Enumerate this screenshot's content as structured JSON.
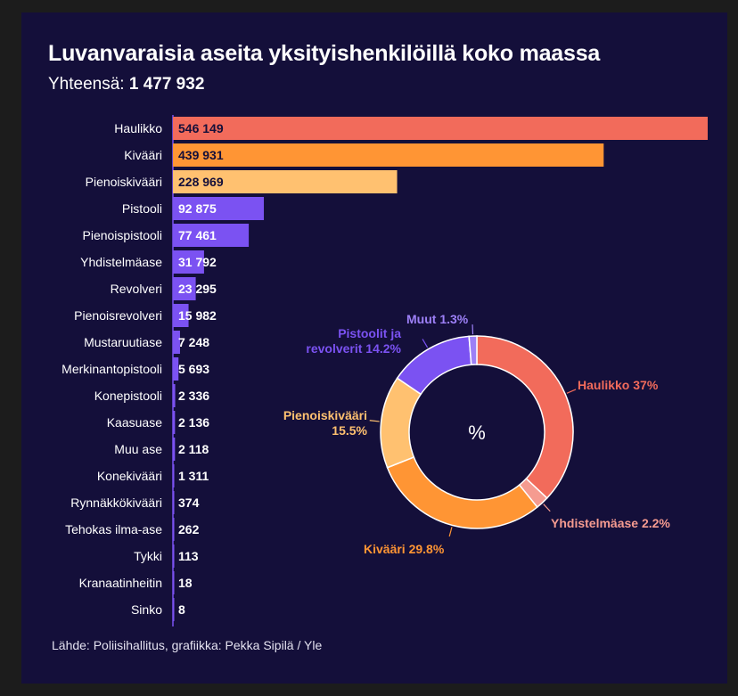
{
  "title": "Luvanvaraisia aseita yksityishenkilöillä koko maassa",
  "subtitle_label": "Yhteensä:",
  "subtitle_total": "1 477 932",
  "source": "Lähde: Poliisihallitus, grafiikka: Pekka Sipilä / Yle",
  "colors": {
    "background": "#140f3a",
    "haulikko": "#f26b5b",
    "kivaari": "#ff9534",
    "pienoiskivaari": "#ffc170",
    "purple": "#7b52f2",
    "yhdistelmaase_slice": "#f59b90",
    "muut_slice": "#9d80f7"
  },
  "chart_data": [
    {
      "type": "bar",
      "orientation": "horizontal",
      "categories": [
        "Haulikko",
        "Kivääri",
        "Pienoiskivääri",
        "Pistooli",
        "Pienoispistooli",
        "Yhdistelmäase",
        "Revolveri",
        "Pienoisrevolveri",
        "Mustaruutiase",
        "Merkinantopistooli",
        "Konepistooli",
        "Kaasuase",
        "Muu ase",
        "Konekivääri",
        "Rynnäkkökivääri",
        "Tehokas ilma-ase",
        "Tykki",
        "Kranaatinheitin",
        "Sinko"
      ],
      "values": [
        546149,
        439931,
        228969,
        92875,
        77461,
        31792,
        23295,
        15982,
        7248,
        5693,
        2336,
        2136,
        2118,
        1311,
        374,
        262,
        113,
        18,
        8
      ],
      "value_labels": [
        "546 149",
        "439 931",
        "228 969",
        "92 875",
        "77 461",
        "31 792",
        "23 295",
        "15 982",
        "7 248",
        "5 693",
        "2 336",
        "2 136",
        "2 118",
        "1 311",
        "374",
        "262",
        "113",
        "18",
        "8"
      ],
      "bar_colors": [
        "#f26b5b",
        "#ff9534",
        "#ffc170",
        "#7b52f2",
        "#7b52f2",
        "#7b52f2",
        "#7b52f2",
        "#7b52f2",
        "#7b52f2",
        "#7b52f2",
        "#7b52f2",
        "#7b52f2",
        "#7b52f2",
        "#7b52f2",
        "#7b52f2",
        "#7b52f2",
        "#7b52f2",
        "#7b52f2",
        "#7b52f2"
      ],
      "xlim": [
        0,
        546149
      ],
      "grid": false
    },
    {
      "type": "pie",
      "donut": true,
      "center_label": "%",
      "slices": [
        {
          "name": "Haulikko",
          "value": 37,
          "label": "Haulikko 37%",
          "color": "#f26b5b"
        },
        {
          "name": "Yhdistelmäase",
          "value": 2.2,
          "label": "Yhdistelmäase 2.2%",
          "color": "#f59b90"
        },
        {
          "name": "Kivääri",
          "value": 29.8,
          "label": "Kivääri 29.8%",
          "color": "#ff9534"
        },
        {
          "name": "Pienoiskivääri",
          "value": 15.5,
          "label_lines": [
            "Pienoiskivääri",
            "15.5%"
          ],
          "color": "#ffc170"
        },
        {
          "name": "Pistoolit ja revolverit",
          "value": 14.2,
          "label_lines": [
            "Pistoolit ja",
            "revolverit 14.2%"
          ],
          "color": "#7b52f2"
        },
        {
          "name": "Muut",
          "value": 1.3,
          "label": "Muut 1.3%",
          "color": "#9d80f7"
        }
      ]
    }
  ]
}
